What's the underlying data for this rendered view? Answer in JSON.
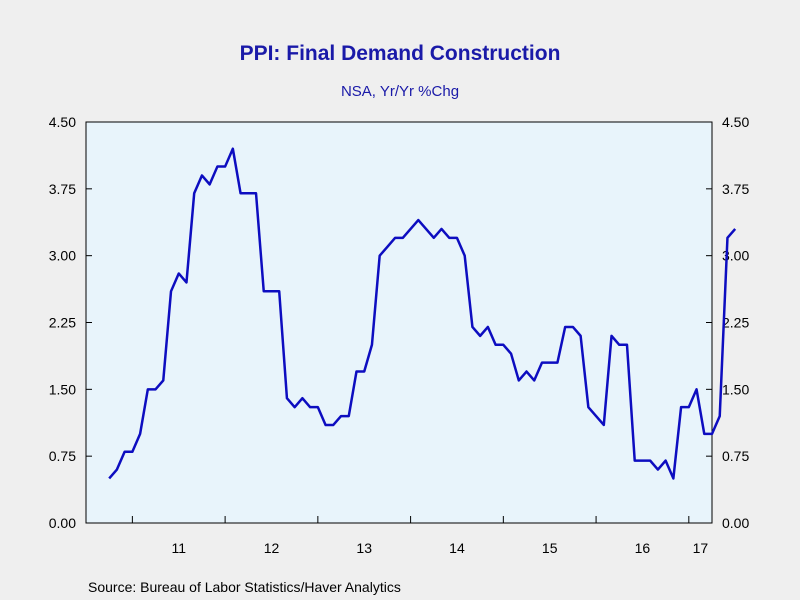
{
  "chart_data": {
    "type": "line",
    "title": "PPI: Final Demand Construction",
    "subtitle": "NSA, Yr/Yr %Chg",
    "source": "Source:  Bureau of Labor Statistics/Haver Analytics",
    "x_tick_labels": [
      "11",
      "12",
      "13",
      "14",
      "15",
      "16",
      "17"
    ],
    "y_ticks": [
      "0.00",
      "0.75",
      "1.50",
      "2.25",
      "3.00",
      "3.75",
      "4.50"
    ],
    "ylim": [
      0,
      4.5
    ],
    "xlim": [
      "2010-07",
      "2017-04"
    ],
    "grid": false,
    "line_color": "#0d0dc0",
    "plot_bg": "#e8f4fb",
    "series": [
      {
        "start": "2010-10",
        "values": [
          0.5,
          0.6,
          0.8,
          0.8,
          1.0,
          1.5,
          1.5,
          1.6,
          2.6,
          2.8,
          2.7,
          3.7,
          3.9,
          3.8,
          4.0,
          4.0,
          4.2,
          3.7,
          3.7,
          3.7,
          2.6,
          2.6,
          2.6,
          1.4,
          1.3,
          1.4,
          1.3,
          1.3,
          1.1,
          1.1,
          1.2,
          1.2,
          1.7,
          1.7,
          2.0,
          3.0,
          3.1,
          3.2,
          3.2,
          3.3,
          3.4,
          3.3,
          3.2,
          3.3,
          3.2,
          3.2,
          3.0,
          2.2,
          2.1,
          2.2,
          2.0,
          2.0,
          1.9,
          1.6,
          1.7,
          1.6,
          1.8,
          1.8,
          1.8,
          2.2,
          2.2,
          2.1,
          1.3,
          1.2,
          1.1,
          2.1,
          2.0,
          2.0,
          0.7,
          0.7,
          0.7,
          0.6,
          0.7,
          0.5,
          1.3,
          1.3,
          1.5,
          1.0,
          1.0,
          1.2,
          3.2,
          3.3
        ]
      }
    ]
  }
}
